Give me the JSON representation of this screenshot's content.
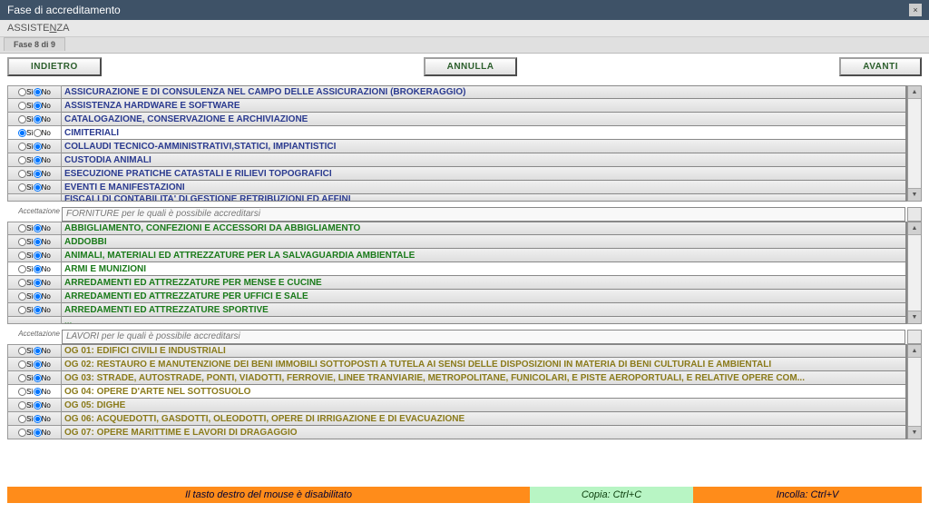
{
  "window": {
    "title": "Fase di accreditamento",
    "close": "×"
  },
  "menu": {
    "label": "ASSISTENZA",
    "accel_index": 6
  },
  "tab": "Fase 8 di 9",
  "nav": {
    "back": "INDIETRO",
    "cancel": "ANNULLA",
    "next": "AVANTI"
  },
  "radio_labels": {
    "yes": "Sì",
    "no": "No"
  },
  "sections": [
    {
      "key": "servizi",
      "label": "Accettazione",
      "header": "",
      "color": "#2a3a8f",
      "show_header": false,
      "items": [
        {
          "t": "ASSICURAZIONE E DI CONSULENZA NEL CAMPO DELLE ASSICURAZIONI (BROKERAGGIO)",
          "sel": false,
          "si": false
        },
        {
          "t": "ASSISTENZA HARDWARE E SOFTWARE",
          "sel": false,
          "si": false
        },
        {
          "t": "CATALOGAZIONE, CONSERVAZIONE E ARCHIVIAZIONE",
          "sel": false,
          "si": false
        },
        {
          "t": "CIMITERIALI",
          "sel": true,
          "si": true
        },
        {
          "t": "COLLAUDI TECNICO-AMMINISTRATIVI,STATICI, IMPIANTISTICI",
          "sel": false,
          "si": false
        },
        {
          "t": "CUSTODIA ANIMALI",
          "sel": false,
          "si": false
        },
        {
          "t": "ESECUZIONE PRATICHE CATASTALI E RILIEVI TOPOGRAFICI",
          "sel": false,
          "si": false
        },
        {
          "t": "EVENTI E MANIFESTAZIONI",
          "sel": false,
          "si": false
        }
      ],
      "partial": "FISCALI DI CONTABILITA' DI GESTIONE RETRIBUZIONI ED AFFINI"
    },
    {
      "key": "forniture",
      "label": "Accettazione",
      "header": "FORNITURE per le quali è possibile accreditarsi",
      "color": "#1a7a1a",
      "show_header": true,
      "items": [
        {
          "t": "ABBIGLIAMENTO, CONFEZIONI E ACCESSORI DA ABBIGLIAMENTO",
          "sel": false,
          "si": false
        },
        {
          "t": "ADDOBBI",
          "sel": false,
          "si": false
        },
        {
          "t": "ANIMALI, MATERIALI ED ATTREZZATURE PER LA SALVAGUARDIA AMBIENTALE",
          "sel": false,
          "si": false
        },
        {
          "t": "ARMI E MUNIZIONI",
          "sel": true,
          "si": false
        },
        {
          "t": "ARREDAMENTI ED ATTREZZATURE PER MENSE E CUCINE",
          "sel": false,
          "si": false
        },
        {
          "t": "ARREDAMENTI ED ATTREZZATURE PER UFFICI E SALE",
          "sel": false,
          "si": false
        },
        {
          "t": "ARREDAMENTI ED ATTREZZATURE SPORTIVE",
          "sel": false,
          "si": false
        }
      ],
      "partial": "..."
    },
    {
      "key": "lavori",
      "label": "Accettazione",
      "header": "LAVORI per le quali è possibile accreditarsi",
      "color": "#8a7a1a",
      "show_header": true,
      "items": [
        {
          "t": "OG 01: EDIFICI CIVILI E INDUSTRIALI",
          "sel": false,
          "si": false
        },
        {
          "t": "OG 02: RESTAURO E MANUTENZIONE DEI BENI IMMOBILI SOTTOPOSTI A TUTELA AI SENSI DELLE DISPOSIZIONI IN MATERIA DI BENI CULTURALI E AMBIENTALI",
          "sel": false,
          "si": false
        },
        {
          "t": "OG 03: STRADE, AUTOSTRADE, PONTI, VIADOTTI, FERROVIE, LINEE TRANVIARIE, METROPOLITANE, FUNICOLARI, E PISTE AEROPORTUALI, E RELATIVE OPERE COM...",
          "sel": false,
          "si": false
        },
        {
          "t": "OG 04: OPERE D'ARTE NEL SOTTOSUOLO",
          "sel": true,
          "si": false
        },
        {
          "t": "OG 05: DIGHE",
          "sel": false,
          "si": false
        },
        {
          "t": "OG 06: ACQUEDOTTI, GASDOTTI, OLEODOTTI, OPERE DI IRRIGAZIONE E DI EVACUAZIONE",
          "sel": false,
          "si": false
        },
        {
          "t": "OG 07: OPERE MARITTIME E LAVORI DI DRAGAGGIO",
          "sel": false,
          "si": false
        }
      ],
      "partial": ""
    }
  ],
  "footer": {
    "rclick": "Il tasto destro del mouse è disabilitato",
    "copy": "Copia: Ctrl+C",
    "paste": "Incolla: Ctrl+V"
  }
}
